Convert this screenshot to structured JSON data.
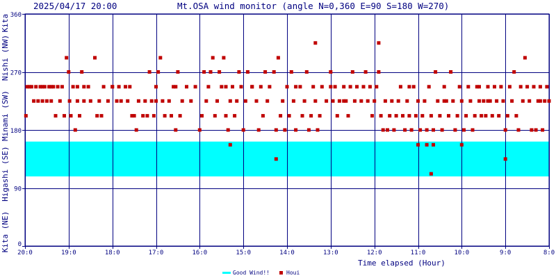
{
  "header": {
    "timestamp": "2025/04/17 20:00",
    "title": "Mt.OSA wind monitor (angle N=0,360 E=90 S=180 W=270)"
  },
  "colors": {
    "axis_text": "#000080",
    "grid": "#000080",
    "good_wind_band": "#00ffff",
    "houi_points": "#c00000",
    "background": "#ffffff"
  },
  "chart_data": {
    "type": "scatter",
    "title": "Mt.OSA wind monitor (angle N=0,360 E=90 S=180 W=270)",
    "xlabel": "Time elapsed (Hour)",
    "ylabel": "",
    "x_unit": "hours before 2025/04/17 20:00",
    "xlim": [
      0,
      12
    ],
    "ylim": [
      0,
      360
    ],
    "x_ticks": [
      {
        "v": 0,
        "label": "20:0"
      },
      {
        "v": 1,
        "label": "19:0"
      },
      {
        "v": 2,
        "label": "18:0"
      },
      {
        "v": 3,
        "label": "17:0"
      },
      {
        "v": 4,
        "label": "16:0"
      },
      {
        "v": 5,
        "label": "15:0"
      },
      {
        "v": 6,
        "label": "14:0"
      },
      {
        "v": 7,
        "label": "13:0"
      },
      {
        "v": 8,
        "label": "12:0"
      },
      {
        "v": 9,
        "label": "11:0"
      },
      {
        "v": 10,
        "label": "10:0"
      },
      {
        "v": 11,
        "label": "9:0"
      },
      {
        "v": 12,
        "label": "8:0"
      }
    ],
    "y_ticks": [
      {
        "v": 0,
        "label": "0"
      },
      {
        "v": 90,
        "label": "90"
      },
      {
        "v": 180,
        "label": "180"
      },
      {
        "v": 270,
        "label": "270"
      },
      {
        "v": 360,
        "label": "360"
      }
    ],
    "y_direction_labels": [
      {
        "v": 22,
        "text": "Kita (NE)"
      },
      {
        "v": 112,
        "text": "Higashi (SE)"
      },
      {
        "v": 202,
        "text": "Minami (SW)"
      },
      {
        "v": 292,
        "text": "Nishi (NW)"
      },
      {
        "v": 360,
        "text": "Kita"
      }
    ],
    "grid": true,
    "bands": [
      {
        "name": "Good Wind!!",
        "from": 108,
        "to": 162,
        "color": "#00ffff"
      }
    ],
    "series": [
      {
        "name": "Houi",
        "color": "#c00000",
        "points": [
          [
            0.02,
            202
          ],
          [
            0.05,
            247
          ],
          [
            0.1,
            247
          ],
          [
            0.15,
            247
          ],
          [
            0.2,
            225
          ],
          [
            0.25,
            247
          ],
          [
            0.3,
            225
          ],
          [
            0.35,
            247
          ],
          [
            0.4,
            225
          ],
          [
            0.45,
            247
          ],
          [
            0.5,
            225
          ],
          [
            0.55,
            247
          ],
          [
            0.6,
            225
          ],
          [
            0.65,
            247
          ],
          [
            0.7,
            202
          ],
          [
            0.75,
            247
          ],
          [
            0.8,
            225
          ],
          [
            0.85,
            247
          ],
          [
            0.9,
            202
          ],
          [
            0.95,
            292
          ],
          [
            1.0,
            270
          ],
          [
            1.02,
            225
          ],
          [
            1.05,
            202
          ],
          [
            1.1,
            247
          ],
          [
            1.15,
            180
          ],
          [
            1.2,
            225
          ],
          [
            1.25,
            202
          ],
          [
            1.3,
            270
          ],
          [
            1.35,
            225
          ],
          [
            1.45,
            247
          ],
          [
            1.5,
            225
          ],
          [
            1.6,
            292
          ],
          [
            1.65,
            202
          ],
          [
            1.7,
            225
          ],
          [
            1.75,
            202
          ],
          [
            1.8,
            247
          ],
          [
            1.9,
            225
          ],
          [
            2.0,
            247
          ],
          [
            2.1,
            225
          ],
          [
            2.15,
            247
          ],
          [
            2.2,
            225
          ],
          [
            2.3,
            247
          ],
          [
            2.35,
            225
          ],
          [
            2.45,
            202
          ],
          [
            2.5,
            202
          ],
          [
            2.55,
            180
          ],
          [
            2.6,
            225
          ],
          [
            2.7,
            202
          ],
          [
            2.75,
            225
          ],
          [
            2.8,
            202
          ],
          [
            2.85,
            270
          ],
          [
            2.9,
            225
          ],
          [
            2.95,
            202
          ],
          [
            3.0,
            225
          ],
          [
            3.05,
            270
          ],
          [
            3.1,
            292
          ],
          [
            3.15,
            225
          ],
          [
            3.2,
            202
          ],
          [
            3.3,
            225
          ],
          [
            3.35,
            202
          ],
          [
            3.4,
            247
          ],
          [
            3.45,
            180
          ],
          [
            3.5,
            270
          ],
          [
            3.55,
            202
          ],
          [
            3.6,
            225
          ],
          [
            3.7,
            247
          ],
          [
            3.8,
            225
          ],
          [
            3.9,
            247
          ],
          [
            4.0,
            180
          ],
          [
            4.05,
            202
          ],
          [
            4.1,
            270
          ],
          [
            4.15,
            225
          ],
          [
            4.2,
            247
          ],
          [
            4.25,
            270
          ],
          [
            4.3,
            292
          ],
          [
            4.35,
            202
          ],
          [
            4.4,
            225
          ],
          [
            4.45,
            270
          ],
          [
            4.5,
            247
          ],
          [
            4.55,
            292
          ],
          [
            4.6,
            202
          ],
          [
            4.65,
            180
          ],
          [
            4.7,
            225
          ],
          [
            4.75,
            247
          ],
          [
            4.8,
            202
          ],
          [
            4.85,
            225
          ],
          [
            4.9,
            270
          ],
          [
            4.95,
            247
          ],
          [
            5.0,
            180
          ],
          [
            5.05,
            225
          ],
          [
            5.1,
            270
          ],
          [
            5.2,
            247
          ],
          [
            5.3,
            225
          ],
          [
            5.35,
            180
          ],
          [
            5.4,
            247
          ],
          [
            5.45,
            202
          ],
          [
            5.5,
            270
          ],
          [
            5.55,
            225
          ],
          [
            5.6,
            247
          ],
          [
            5.7,
            270
          ],
          [
            5.75,
            180
          ],
          [
            5.8,
            292
          ],
          [
            5.85,
            202
          ],
          [
            5.9,
            225
          ],
          [
            5.95,
            180
          ],
          [
            6.0,
            247
          ],
          [
            6.05,
            202
          ],
          [
            6.1,
            270
          ],
          [
            6.15,
            225
          ],
          [
            6.2,
            180
          ],
          [
            6.3,
            247
          ],
          [
            6.35,
            202
          ],
          [
            6.4,
            225
          ],
          [
            6.45,
            270
          ],
          [
            6.5,
            180
          ],
          [
            6.55,
            202
          ],
          [
            6.6,
            247
          ],
          [
            6.65,
            225
          ],
          [
            6.7,
            180
          ],
          [
            6.75,
            202
          ],
          [
            6.8,
            247
          ],
          [
            6.9,
            225
          ],
          [
            7.0,
            270
          ],
          [
            7.05,
            225
          ],
          [
            7.1,
            247
          ],
          [
            7.15,
            202
          ],
          [
            7.2,
            225
          ],
          [
            7.3,
            247
          ],
          [
            7.35,
            225
          ],
          [
            7.4,
            202
          ],
          [
            7.45,
            247
          ],
          [
            7.5,
            270
          ],
          [
            7.55,
            225
          ],
          [
            7.6,
            247
          ],
          [
            7.7,
            225
          ],
          [
            7.75,
            247
          ],
          [
            7.8,
            270
          ],
          [
            7.85,
            225
          ],
          [
            7.9,
            247
          ],
          [
            7.95,
            202
          ],
          [
            8.0,
            225
          ],
          [
            8.05,
            247
          ],
          [
            8.1,
            270
          ],
          [
            8.15,
            202
          ],
          [
            8.2,
            180
          ],
          [
            8.25,
            225
          ],
          [
            8.3,
            180
          ],
          [
            8.35,
            202
          ],
          [
            8.4,
            225
          ],
          [
            8.45,
            180
          ],
          [
            8.5,
            202
          ],
          [
            8.55,
            225
          ],
          [
            8.6,
            247
          ],
          [
            8.65,
            202
          ],
          [
            8.7,
            180
          ],
          [
            8.75,
            225
          ],
          [
            8.8,
            202
          ],
          [
            8.85,
            180
          ],
          [
            8.9,
            247
          ],
          [
            8.95,
            202
          ],
          [
            9.0,
            225
          ],
          [
            9.05,
            180
          ],
          [
            9.1,
            202
          ],
          [
            9.15,
            225
          ],
          [
            9.2,
            180
          ],
          [
            9.25,
            247
          ],
          [
            9.3,
            202
          ],
          [
            9.35,
            180
          ],
          [
            9.4,
            270
          ],
          [
            9.45,
            225
          ],
          [
            9.5,
            202
          ],
          [
            9.55,
            180
          ],
          [
            9.6,
            247
          ],
          [
            9.65,
            225
          ],
          [
            9.7,
            202
          ],
          [
            9.75,
            270
          ],
          [
            9.8,
            225
          ],
          [
            9.85,
            180
          ],
          [
            9.9,
            202
          ],
          [
            9.95,
            247
          ],
          [
            10.0,
            225
          ],
          [
            10.05,
            180
          ],
          [
            10.1,
            202
          ],
          [
            10.15,
            247
          ],
          [
            10.2,
            225
          ],
          [
            10.25,
            180
          ],
          [
            10.3,
            202
          ],
          [
            10.35,
            247
          ],
          [
            10.4,
            225
          ],
          [
            10.45,
            202
          ],
          [
            10.5,
            225
          ],
          [
            10.55,
            202
          ],
          [
            10.6,
            247
          ],
          [
            10.65,
            225
          ],
          [
            10.7,
            202
          ],
          [
            10.75,
            247
          ],
          [
            10.8,
            225
          ],
          [
            10.85,
            202
          ],
          [
            10.9,
            247
          ],
          [
            10.95,
            225
          ],
          [
            11.0,
            180
          ],
          [
            11.05,
            202
          ],
          [
            11.1,
            247
          ],
          [
            11.15,
            225
          ],
          [
            11.2,
            270
          ],
          [
            11.25,
            202
          ],
          [
            11.3,
            180
          ],
          [
            11.35,
            247
          ],
          [
            11.4,
            225
          ],
          [
            11.45,
            292
          ],
          [
            11.5,
            247
          ],
          [
            11.55,
            225
          ],
          [
            11.6,
            180
          ],
          [
            11.65,
            247
          ],
          [
            11.7,
            180
          ],
          [
            11.75,
            225
          ],
          [
            11.8,
            247
          ],
          [
            11.85,
            180
          ],
          [
            11.9,
            225
          ],
          [
            11.95,
            247
          ],
          [
            12.0,
            225
          ],
          [
            0.4,
            247
          ],
          [
            0.6,
            247
          ],
          [
            1.2,
            247
          ],
          [
            2.0,
            247
          ],
          [
            3.0,
            247
          ],
          [
            4.6,
            247
          ],
          [
            5.2,
            247
          ],
          [
            6.2,
            247
          ],
          [
            7.0,
            247
          ],
          [
            8.8,
            247
          ],
          [
            10.4,
            247
          ],
          [
            4.7,
            157
          ],
          [
            5.75,
            135
          ],
          [
            9.0,
            157
          ],
          [
            9.2,
            157
          ],
          [
            9.3,
            112
          ],
          [
            9.35,
            157
          ],
          [
            10.0,
            157
          ],
          [
            11.0,
            135
          ],
          [
            6.65,
            315
          ],
          [
            8.1,
            315
          ],
          [
            3.45,
            247
          ],
          [
            2.4,
            247
          ],
          [
            1.35,
            247
          ],
          [
            7.3,
            225
          ],
          [
            9.6,
            225
          ],
          [
            10.6,
            225
          ],
          [
            11.8,
            225
          ]
        ]
      }
    ],
    "legend": {
      "placement": "bottom-center",
      "items": [
        {
          "label": "Good Wind!!",
          "kind": "line",
          "color": "#00ffff"
        },
        {
          "label": "Houi",
          "kind": "square",
          "color": "#c00000"
        }
      ]
    }
  }
}
